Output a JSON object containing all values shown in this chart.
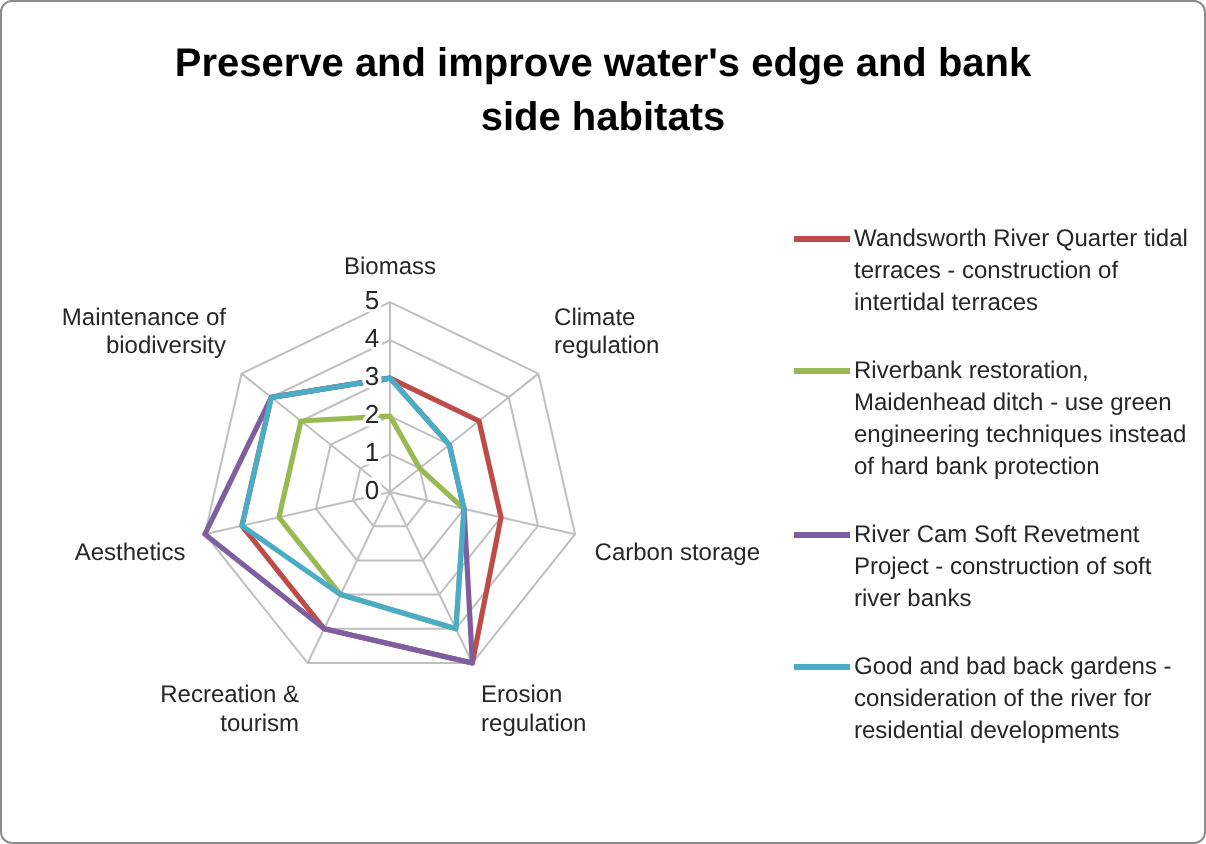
{
  "chart_data": {
    "type": "radar",
    "title": "Preserve and improve water's edge and bank side habitats",
    "categories": [
      "Biomass",
      "Climate regulation",
      "Carbon storage",
      "Erosion regulation",
      "Recreation & tourism",
      "Aesthetics",
      "Maintenance of biodiversity"
    ],
    "series": [
      {
        "name": "Wandsworth River Quarter tidal terraces - construction of intertidal terraces",
        "color": "#be4b48",
        "values": [
          3,
          3,
          3,
          5,
          4,
          4,
          4
        ]
      },
      {
        "name": "Riverbank restoration, Maidenhead ditch - use green engineering techniques instead of hard bank protection",
        "color": "#98b954",
        "values": [
          2,
          1,
          2,
          4,
          3,
          3,
          3
        ]
      },
      {
        "name": "River Cam Soft Revetment Project - construction of soft river banks",
        "color": "#7d5fa0",
        "values": [
          3,
          2,
          2,
          5,
          4,
          5,
          4
        ]
      },
      {
        "name": "Good and bad back gardens - consideration of the river for residential developments",
        "color": "#4bacc6",
        "values": [
          3,
          2,
          2,
          4,
          3,
          4,
          4
        ]
      }
    ],
    "ylim": [
      0,
      5
    ],
    "yticks": [
      0,
      1,
      2,
      3,
      4,
      5
    ],
    "grid": true,
    "legend": "right"
  }
}
